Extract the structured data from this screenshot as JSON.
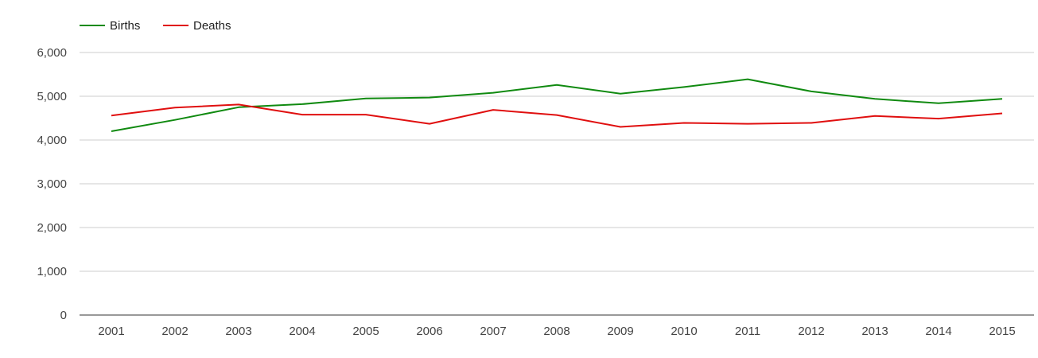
{
  "chart_data": {
    "type": "line",
    "title": "",
    "xlabel": "",
    "ylabel": "",
    "categories": [
      "2001",
      "2002",
      "2003",
      "2004",
      "2005",
      "2006",
      "2007",
      "2008",
      "2009",
      "2010",
      "2011",
      "2012",
      "2013",
      "2014",
      "2015"
    ],
    "ylim": [
      0,
      6000
    ],
    "yticks": [
      "0",
      "1,000",
      "2,000",
      "3,000",
      "4,000",
      "5,000",
      "6,000"
    ],
    "grid": true,
    "legend_position": "top-left",
    "series": [
      {
        "name": "Births",
        "color": "#108a10",
        "values": [
          4200,
          4460,
          4750,
          4820,
          4950,
          4970,
          5080,
          5260,
          5060,
          5210,
          5390,
          5110,
          4940,
          4840,
          4940
        ]
      },
      {
        "name": "Deaths",
        "color": "#e00f0f",
        "values": [
          4560,
          4740,
          4810,
          4580,
          4580,
          4370,
          4690,
          4570,
          4300,
          4390,
          4370,
          4390,
          4550,
          4490,
          4610
        ]
      }
    ]
  }
}
